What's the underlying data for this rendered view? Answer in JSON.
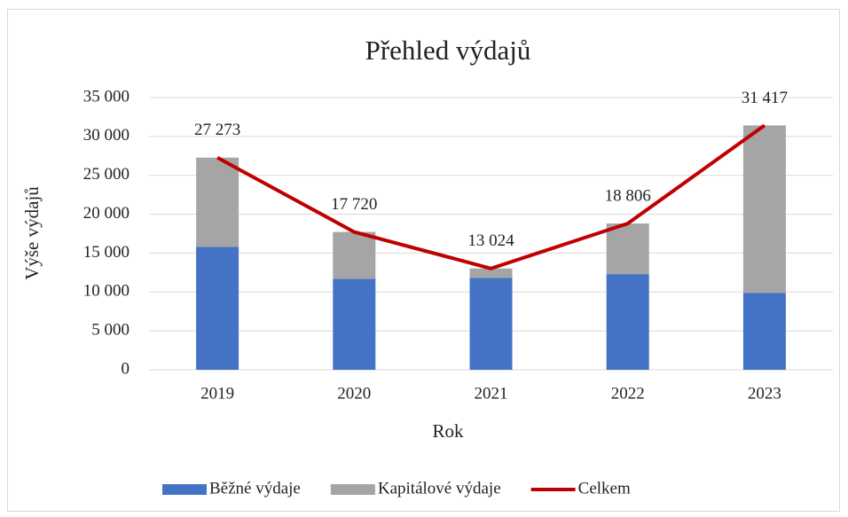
{
  "chart_data": {
    "type": "bar-line",
    "title": "Přehled výdajů",
    "x_label": "Rok",
    "y_label": "Výše výdajů",
    "categories": [
      "2019",
      "2020",
      "2021",
      "2022",
      "2023"
    ],
    "series": [
      {
        "name": "Běžné výdaje",
        "color": "#4472c4",
        "type": "bar",
        "values": [
          15800,
          11700,
          11800,
          12300,
          9900
        ]
      },
      {
        "name": "Kapitálové výdaje",
        "color": "#a5a5a5",
        "type": "bar",
        "values": [
          11473,
          6020,
          1224,
          6506,
          21517
        ]
      },
      {
        "name": "Celkem",
        "color": "#c00000",
        "type": "line",
        "values": [
          27273,
          17720,
          13024,
          18806,
          31417
        ],
        "value_labels": [
          "27 273",
          "17 720",
          "13 024",
          "18 806",
          "31 417"
        ]
      }
    ],
    "ylim": [
      0,
      35000
    ],
    "yticks": [
      0,
      {
        "value": 5000,
        "label": "5 000"
      },
      {
        "value": 10000,
        "label": "10 000"
      },
      {
        "value": 15000,
        "label": "15 000"
      },
      {
        "value": 20000,
        "label": "20 000"
      },
      {
        "value": 25000,
        "label": "25 000"
      },
      {
        "value": 30000,
        "label": "30 000"
      },
      {
        "value": 35000,
        "label": "35 000"
      }
    ],
    "grid": true,
    "legend": "bottom"
  }
}
